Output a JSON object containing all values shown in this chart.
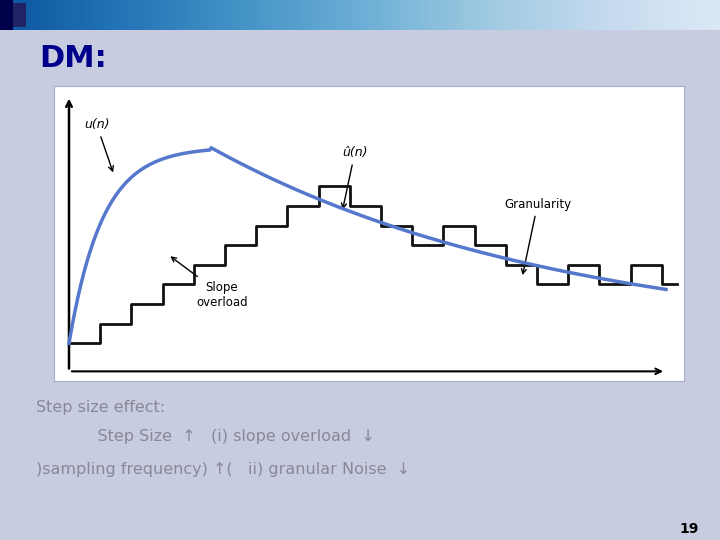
{
  "title": "DM:",
  "title_color": "#00008B",
  "title_fontsize": 22,
  "bg_color": "#C8CCE0",
  "chart_bg": "#FFFFFF",
  "bottom_bar_color": "#00008B",
  "page_number": "19",
  "text_color": "#888899",
  "line1": "Step size effect:",
  "line2": "            Step Size  ↑   (i) slope overload  ↓",
  "line3": ")sampling frequency) ↑(   ii) granular Noise  ↓",
  "curve_color": "#5577CC",
  "staircase_color": "#111111",
  "label_u_n": "u(n)",
  "label_u_hat_n": "û(n)",
  "label_granularity": "Granularity",
  "label_slope": "Slope\noverload"
}
